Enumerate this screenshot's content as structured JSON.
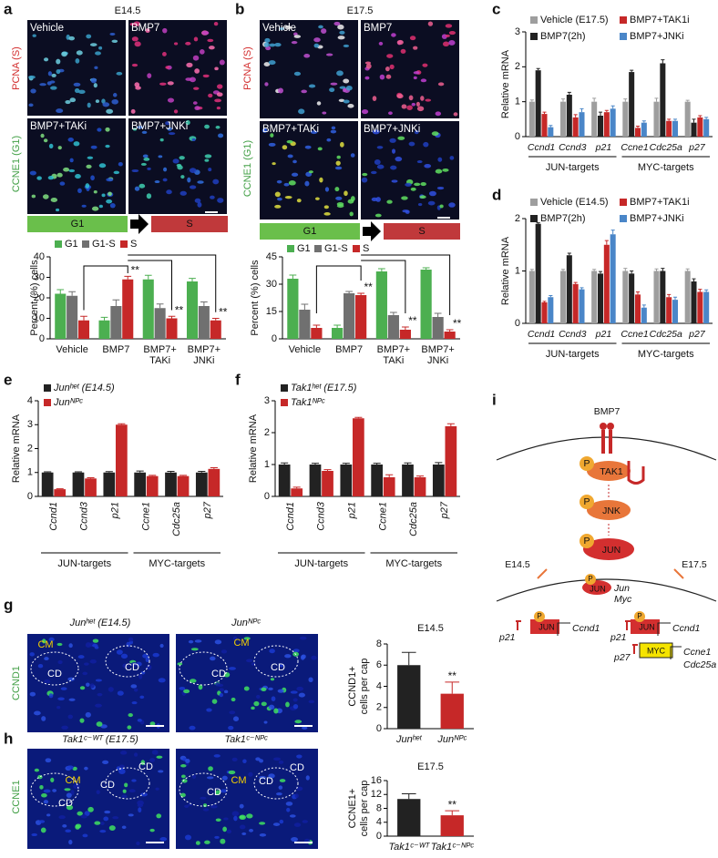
{
  "panel_letters": [
    "a",
    "b",
    "c",
    "d",
    "e",
    "f",
    "g",
    "h",
    "i"
  ],
  "panel_a": {
    "title": "E14.5",
    "images": [
      "Vehicle",
      "BMP7",
      "BMP7+TAKi",
      "BMP7+JNKi"
    ],
    "stain_top": "PCNA (S)",
    "stain_bottom": "CCNE1 (G1)",
    "phases": [
      "G1",
      "S"
    ]
  },
  "panel_b": {
    "title": "E17.5",
    "images": [
      "Vehicle",
      "BMP7",
      "BMP7+TAKi",
      "BMP7+JNKi"
    ],
    "stain_top": "PCNA (S)",
    "stain_bottom": "CCNE1 (G1)",
    "phases": [
      "G1",
      "S"
    ]
  },
  "panel_g": {
    "images": [
      "Junʰᵉᵗ (E14.5)",
      "Junᴺᴾᶜ"
    ],
    "stain": "CCND1",
    "region_labels": [
      "CM",
      "CD",
      "CD",
      "CM",
      "CD",
      "CD"
    ]
  },
  "panel_h": {
    "images": [
      "Tak1ᶜ⁻ᵂᵀ (E17.5)",
      "Tak1ᶜ⁻ᴺᴾᶜ"
    ],
    "stain": "CCNE1",
    "region_labels": [
      "CM",
      "CD",
      "CD",
      "CD",
      "CM",
      "CD",
      "CD",
      "CD"
    ]
  },
  "diagram_i": {
    "labels": [
      "BMP7",
      "P",
      "TAK1",
      "P",
      "JNK",
      "P",
      "JUN",
      "E14.5",
      "E17.5",
      "P",
      "JUN",
      "Jun",
      "Myc",
      "p21",
      "P",
      "JUN",
      "Ccnd1",
      "p21",
      "P",
      "JUN",
      "Ccnd1",
      "p27",
      "MYC",
      "Ccne1",
      "Cdc25a"
    ]
  },
  "chart_data": [
    {
      "type": "bar",
      "ylabel": "Percent (%) cells",
      "categories": [
        [
          "Vehicle"
        ],
        [
          "BMP7"
        ],
        [
          "BMP7+",
          "TAKi"
        ],
        [
          "BMP7+",
          "JNKi"
        ]
      ],
      "series": [
        {
          "name": "G1",
          "color": "#4caf50",
          "values": [
            22,
            9,
            29,
            28
          ],
          "errors": [
            2,
            1.5,
            2,
            1.5
          ]
        },
        {
          "name": "G1-S",
          "color": "#707070",
          "values": [
            21,
            16,
            15,
            16
          ],
          "errors": [
            2,
            3,
            2,
            2
          ]
        },
        {
          "name": "S",
          "color": "#c62828",
          "values": [
            9,
            29,
            10,
            9
          ],
          "errors": [
            2,
            1.5,
            1,
            1
          ],
          "significance": [
            null,
            "**",
            "**",
            "**"
          ]
        }
      ],
      "ylim": [
        0,
        40
      ],
      "yticks": [
        0,
        10,
        20,
        30,
        40
      ]
    },
    {
      "type": "bar",
      "ylabel": "Percent (%) cells",
      "categories": [
        [
          "Vehicle"
        ],
        [
          "BMP7"
        ],
        [
          "BMP7+",
          "TAKi"
        ],
        [
          "BMP7+",
          "JNKi"
        ]
      ],
      "series": [
        {
          "name": "G1",
          "color": "#4caf50",
          "values": [
            33,
            6,
            37,
            38
          ],
          "errors": [
            2,
            1.5,
            1.5,
            1
          ]
        },
        {
          "name": "G1-S",
          "color": "#707070",
          "values": [
            16,
            25,
            13,
            12
          ],
          "errors": [
            3,
            1,
            1.5,
            2
          ]
        },
        {
          "name": "S",
          "color": "#c62828",
          "values": [
            6,
            24,
            5,
            4
          ],
          "errors": [
            1.5,
            1,
            1.5,
            1
          ],
          "significance": [
            null,
            "**",
            "**",
            "**"
          ]
        }
      ],
      "ylim": [
        0,
        45
      ],
      "yticks": [
        0,
        15,
        30,
        45
      ]
    },
    {
      "type": "bar",
      "ylabel": "Relative mRNA",
      "categories": [
        "Ccnd1",
        "Ccnd3",
        "p21",
        "Ccne1",
        "Cdc25a",
        "p27"
      ],
      "groups": [
        "JUN-targets",
        "MYC-targets"
      ],
      "series": [
        {
          "name": "Vehicle (E17.5)",
          "color": "#9e9e9e",
          "values": [
            1,
            1,
            1,
            1,
            1,
            1
          ],
          "errors": [
            0.05,
            0.08,
            0.1,
            0.08,
            0.1,
            0.04
          ]
        },
        {
          "name": "BMP7(2h)",
          "color": "#222222",
          "values": [
            1.9,
            1.2,
            0.6,
            1.85,
            2.1,
            0.4
          ],
          "errors": [
            0.05,
            0.07,
            0.1,
            0.05,
            0.1,
            0.1
          ]
        },
        {
          "name": "BMP7+TAK1i",
          "color": "#c62828",
          "values": [
            0.65,
            0.55,
            0.7,
            0.25,
            0.45,
            0.55
          ],
          "errors": [
            0.05,
            0.08,
            0.05,
            0.05,
            0.05,
            0.05
          ]
        },
        {
          "name": "BMP7+JNKi",
          "color": "#4a86c8",
          "values": [
            0.27,
            0.7,
            0.8,
            0.4,
            0.45,
            0.5
          ],
          "errors": [
            0.05,
            0.1,
            0.08,
            0.05,
            0.05,
            0.05
          ]
        }
      ],
      "ylim": [
        0,
        3
      ],
      "yticks": [
        0,
        1,
        2,
        3
      ]
    },
    {
      "type": "bar",
      "ylabel": "Relative mRNA",
      "categories": [
        "Ccnd1",
        "Ccnd3",
        "p21",
        "Ccne1",
        "Cdc25a",
        "p27"
      ],
      "groups": [
        "JUN-targets",
        "MYC-targets"
      ],
      "series": [
        {
          "name": "Vehicle (E14.5)",
          "color": "#9e9e9e",
          "values": [
            1,
            1,
            1,
            1,
            1,
            1
          ],
          "errors": [
            0.03,
            0.03,
            0.03,
            0.05,
            0.04,
            0.04
          ]
        },
        {
          "name": "BMP7(2h)",
          "color": "#222222",
          "values": [
            1.9,
            1.3,
            0.95,
            0.95,
            1.0,
            0.8
          ],
          "errors": [
            0.02,
            0.04,
            0.04,
            0.05,
            0.05,
            0.05
          ]
        },
        {
          "name": "BMP7+TAK1i",
          "color": "#c62828",
          "values": [
            0.4,
            0.75,
            1.5,
            0.55,
            0.5,
            0.6
          ],
          "errors": [
            0.02,
            0.03,
            0.08,
            0.05,
            0.05,
            0.05
          ]
        },
        {
          "name": "BMP7+JNKi",
          "color": "#4a86c8",
          "values": [
            0.5,
            0.65,
            1.7,
            0.3,
            0.45,
            0.6
          ],
          "errors": [
            0.03,
            0.03,
            0.08,
            0.05,
            0.05,
            0.04
          ]
        }
      ],
      "ylim": [
        0,
        2
      ],
      "yticks": [
        0,
        1,
        2
      ]
    },
    {
      "type": "bar",
      "ylabel": "Relative mRNA",
      "categories": [
        "Ccnd1",
        "Ccnd3",
        "p21",
        "Ccne1",
        "Cdc25a",
        "p27"
      ],
      "groups": [
        "JUN-targets",
        "MYC-targets"
      ],
      "series": [
        {
          "name": "Junʰᵉᵗ (E14.5)",
          "color": "#222222",
          "values": [
            1,
            1,
            1,
            1,
            1,
            1
          ],
          "errors": [
            0.03,
            0.03,
            0.04,
            0.06,
            0.05,
            0.05
          ]
        },
        {
          "name": "Junᴺᴾᶜ",
          "color": "#c62828",
          "values": [
            0.3,
            0.75,
            3.0,
            0.85,
            0.85,
            1.15
          ],
          "errors": [
            0.02,
            0.03,
            0.04,
            0.03,
            0.03,
            0.05
          ]
        }
      ],
      "ylim": [
        0,
        4
      ],
      "yticks": [
        0,
        1,
        2,
        3,
        4
      ]
    },
    {
      "type": "bar",
      "ylabel": "Relative mRNA",
      "categories": [
        "Ccnd1",
        "Ccnd3",
        "p21",
        "Ccne1",
        "Cdc25a",
        "p27"
      ],
      "groups": [
        "JUN-targets",
        "MYC-targets"
      ],
      "series": [
        {
          "name": "Tak1ʰᵉᵗ (E17.5)",
          "color": "#222222",
          "values": [
            1,
            1,
            1,
            1,
            1,
            1
          ],
          "errors": [
            0.05,
            0.04,
            0.04,
            0.04,
            0.05,
            0.06
          ]
        },
        {
          "name": "Tak1ᴺᴾᶜ",
          "color": "#c62828",
          "values": [
            0.25,
            0.8,
            2.45,
            0.6,
            0.6,
            2.2
          ],
          "errors": [
            0.04,
            0.04,
            0.03,
            0.08,
            0.04,
            0.08
          ]
        }
      ],
      "ylim": [
        0,
        3
      ],
      "yticks": [
        0,
        1,
        2,
        3
      ]
    },
    {
      "type": "bar",
      "title": "E14.5",
      "ylabel": [
        "CCND1+",
        "cells per cap"
      ],
      "categories": [
        "Junʰᵉᵗ",
        "Junᴺᴾᶜ"
      ],
      "values": [
        6,
        3.3
      ],
      "errors": [
        1.2,
        1.1
      ],
      "colors": [
        "#222222",
        "#c62828"
      ],
      "significance": [
        null,
        "**"
      ],
      "ylim": [
        0,
        8
      ],
      "yticks": [
        0,
        2,
        4,
        6,
        8
      ]
    },
    {
      "type": "bar",
      "title": "E17.5",
      "ylabel": [
        "CCNE1+",
        "cells per cap"
      ],
      "categories": [
        "Tak1ᶜ⁻ᵂᵀ",
        "Tak1ᶜ⁻ᴺᴾᶜ"
      ],
      "values": [
        10.7,
        6
      ],
      "errors": [
        1.5,
        1.3
      ],
      "colors": [
        "#222222",
        "#c62828"
      ],
      "significance": [
        null,
        "**"
      ],
      "ylim": [
        0,
        16
      ],
      "yticks": [
        0,
        4,
        8,
        12,
        16
      ]
    }
  ]
}
